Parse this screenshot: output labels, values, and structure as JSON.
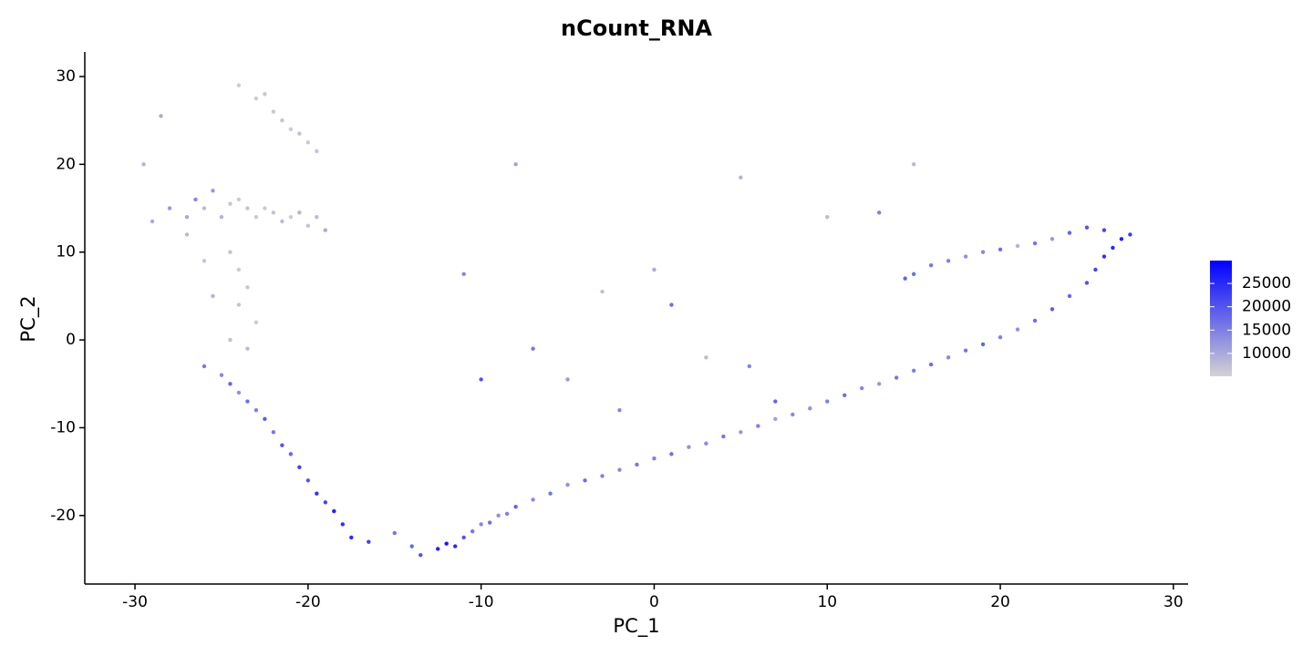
{
  "chart_data": {
    "type": "scatter",
    "title": "nCount_RNA",
    "xlabel": "PC_1",
    "ylabel": "PC_2",
    "xlim": [
      -32.9,
      30.85
    ],
    "ylim": [
      -27.8,
      32.8
    ],
    "xticks": [
      -30,
      -20,
      -10,
      0,
      10,
      20,
      30
    ],
    "yticks": [
      -20,
      -10,
      0,
      10,
      20,
      30
    ],
    "colors": [
      "#d3d3d3",
      "#0000ff"
    ],
    "color_lim": [
      5100,
      29900
    ],
    "color_ticks": [
      10000,
      15000,
      20000,
      25000
    ],
    "x": [
      -12.5,
      -12,
      -11.5,
      -11,
      -10.5,
      -10,
      -9.5,
      -9,
      -8.5,
      -8,
      -7,
      -6,
      -5,
      -4,
      -3,
      -2,
      -1,
      0,
      1,
      2,
      3,
      4,
      5,
      6,
      7,
      8,
      9,
      10,
      11,
      12,
      13,
      14,
      15,
      16,
      17,
      18,
      19,
      20,
      21,
      22,
      23,
      24,
      25,
      25.5,
      26,
      26.5,
      27,
      27.5,
      26,
      25,
      24,
      23,
      22,
      21,
      20,
      19,
      18,
      17,
      16,
      15,
      14.5,
      -5,
      0,
      -3,
      5,
      10,
      13,
      -10,
      -7,
      3,
      7,
      -2,
      15,
      -11,
      -8,
      5.5,
      1,
      -28,
      -27,
      -26.5,
      -26,
      -25.5,
      -25,
      -24.5,
      -24,
      -23.5,
      -23,
      -22.5,
      -22,
      -21.5,
      -21,
      -20.5,
      -20,
      -19.5,
      -19,
      -23,
      -22,
      -21.5,
      -21,
      -20.5,
      -20,
      -19.5,
      -24,
      -22.5,
      -24.5,
      -24,
      -23.5,
      -24,
      -23,
      -24.5,
      -23.5,
      -27,
      -26,
      -25.5,
      -26,
      -25,
      -24.5,
      -24,
      -23.5,
      -23,
      -22.5,
      -22,
      -21.5,
      -21,
      -20.5,
      -20,
      -19.5,
      -19,
      -18.5,
      -18,
      -17.5,
      -16.5,
      -15,
      -14,
      -13.5,
      -29.5,
      -28.5,
      -29
    ],
    "y": [
      -23.8,
      -23.2,
      -23.5,
      -22.5,
      -21.8,
      -21,
      -20.8,
      -20,
      -19.8,
      -19,
      -18.2,
      -17.5,
      -16.5,
      -16,
      -15.5,
      -14.8,
      -14.2,
      -13.5,
      -13,
      -12.2,
      -11.8,
      -11,
      -10.5,
      -9.8,
      -9,
      -8.5,
      -7.8,
      -7,
      -6.3,
      -5.5,
      -5,
      -4.3,
      -3.5,
      -2.8,
      -2,
      -1.2,
      -0.5,
      0.3,
      1.2,
      2.2,
      3.5,
      5,
      6.5,
      8,
      9.5,
      10.5,
      11.5,
      12,
      12.5,
      12.8,
      12.2,
      11.5,
      11,
      10.7,
      10.3,
      10,
      9.5,
      9,
      8.5,
      7.5,
      7,
      -4.5,
      8,
      5.5,
      18.5,
      14,
      14.5,
      -4.5,
      -1,
      -2,
      -7,
      -8,
      20,
      7.5,
      20,
      -3,
      4,
      15,
      14,
      16,
      15,
      17,
      14,
      15.5,
      16,
      15,
      14,
      15,
      14.5,
      13.5,
      14,
      14.5,
      13,
      14,
      12.5,
      27.5,
      26,
      25,
      24,
      23.5,
      22.5,
      21.5,
      29,
      28,
      10,
      8,
      6,
      4,
      2,
      0,
      -1,
      12,
      9,
      5,
      -3,
      -4,
      -5,
      -6,
      -7,
      -8,
      -9,
      -10.5,
      -12,
      -13,
      -14.5,
      -16,
      -17.5,
      -18.5,
      -19.5,
      -21,
      -22.5,
      -23,
      -22,
      -23.5,
      -24.5,
      20,
      25.5,
      13.5
    ],
    "values": [
      26000,
      27000,
      25000,
      20000,
      16000,
      14000,
      17000,
      13000,
      15000,
      18000,
      14000,
      16000,
      13000,
      17000,
      15000,
      14000,
      16000,
      15000,
      17000,
      13000,
      14000,
      16000,
      12000,
      15000,
      11000,
      14000,
      13000,
      15000,
      17000,
      14000,
      12000,
      16000,
      15000,
      17000,
      14000,
      16000,
      18000,
      15000,
      13000,
      17000,
      19000,
      18000,
      20000,
      22000,
      24000,
      25000,
      26000,
      23000,
      22000,
      20000,
      18000,
      12000,
      16000,
      9000,
      17000,
      14000,
      13000,
      15000,
      16000,
      17000,
      18000,
      12000,
      10000,
      7000,
      9000,
      8000,
      15000,
      20000,
      16000,
      8000,
      18000,
      14000,
      8000,
      14000,
      11000,
      15000,
      17000,
      12000,
      10000,
      14000,
      8000,
      12000,
      9000,
      7000,
      6000,
      7000,
      6500,
      6000,
      7000,
      8000,
      6000,
      9000,
      7000,
      8000,
      10000,
      6000,
      6500,
      7000,
      6000,
      7500,
      6000,
      7000,
      6000,
      6500,
      7000,
      6000,
      6500,
      7000,
      6000,
      7000,
      8000,
      8000,
      7000,
      9000,
      16000,
      14000,
      18000,
      13000,
      17000,
      15000,
      19000,
      16000,
      20000,
      18000,
      22000,
      20000,
      24000,
      22000,
      26000,
      24000,
      25000,
      22000,
      16000,
      18000,
      20000,
      9000,
      10000,
      10000
    ]
  }
}
